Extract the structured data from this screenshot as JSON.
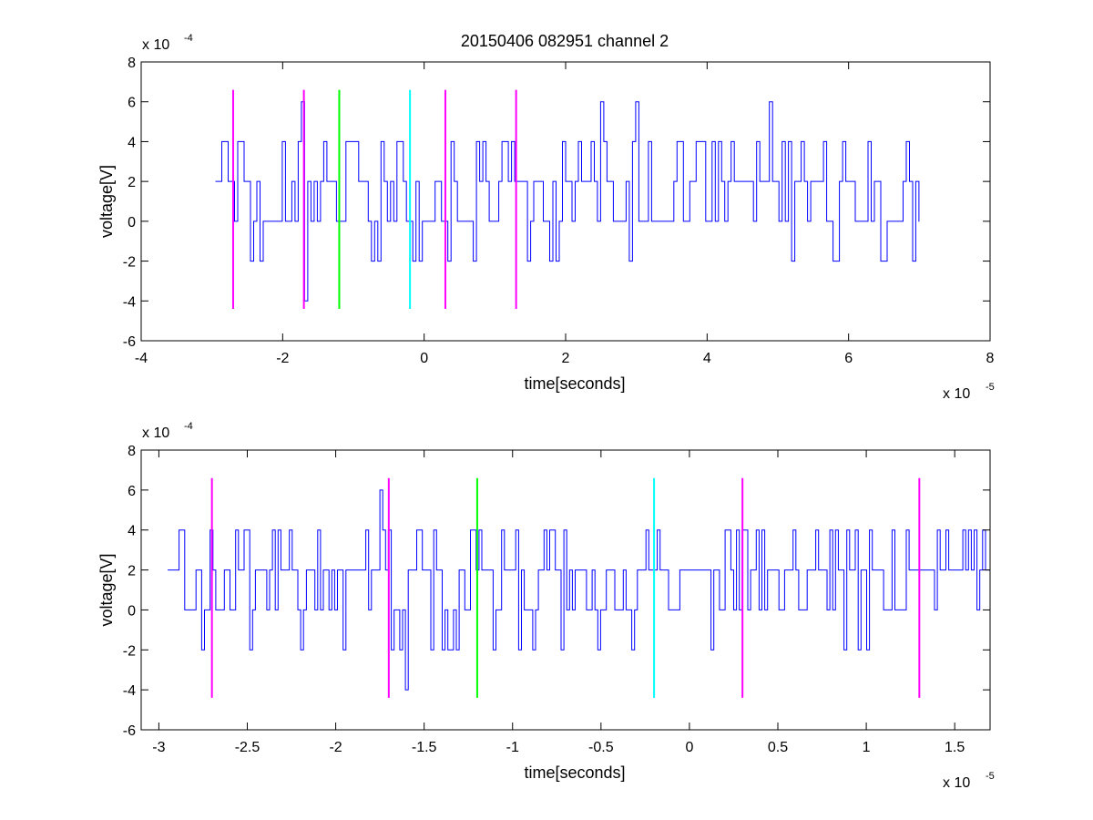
{
  "title": "20150406 082951 channel 2",
  "colors": {
    "signal": "#0000ff",
    "magenta": "#ff00ff",
    "green": "#00ff00",
    "cyan": "#00ffff",
    "axis": "#000000",
    "background": "#ffffff"
  },
  "chart_data": [
    {
      "type": "line",
      "title": "20150406 082951 channel 2",
      "xlabel": "time[seconds]",
      "ylabel": "voltage[V]",
      "x_multiplier_label": "x 10",
      "x_multiplier_exponent": "-5",
      "y_multiplier_label": "x 10",
      "y_multiplier_exponent": "-4",
      "xlim": [
        -4,
        8
      ],
      "ylim": [
        -6,
        8
      ],
      "x_ticks": [
        -4,
        -2,
        0,
        2,
        4,
        6,
        8
      ],
      "x_tick_labels": [
        "-4",
        "-2",
        "0",
        "2",
        "4",
        "6",
        "8"
      ],
      "y_ticks": [
        -6,
        -4,
        -2,
        0,
        2,
        4,
        6,
        8
      ],
      "y_tick_labels": [
        "-6",
        "-4",
        "-2",
        "0",
        "2",
        "4",
        "6",
        "8"
      ],
      "grid": false,
      "series": [
        {
          "kind": "signal",
          "color": "#0000ff",
          "x_range": [
            -2.95,
            7.0
          ],
          "baseline": 2,
          "levels": [
            -4,
            -2,
            0,
            2,
            4,
            6
          ],
          "description_of_samples": "quantized noisy trace in steps of 2e-4 V, mostly 0 to 4",
          "spikes": [
            {
              "x": -1.75,
              "y": 6
            },
            {
              "x": -1.68,
              "y": -4
            },
            {
              "x": 2.5,
              "y": 6
            },
            {
              "x": 3.0,
              "y": 6
            },
            {
              "x": 4.9,
              "y": 6
            }
          ]
        }
      ],
      "markers": [
        {
          "x": -2.7,
          "y_from": -4.4,
          "y_to": 6.6,
          "color": "#ff00ff"
        },
        {
          "x": -1.7,
          "y_from": -4.4,
          "y_to": 6.6,
          "color": "#ff00ff"
        },
        {
          "x": -1.2,
          "y_from": -4.4,
          "y_to": 6.6,
          "color": "#00ff00"
        },
        {
          "x": -0.2,
          "y_from": -4.4,
          "y_to": 6.6,
          "color": "#00ffff"
        },
        {
          "x": 0.3,
          "y_from": -4.4,
          "y_to": 6.6,
          "color": "#ff00ff"
        },
        {
          "x": 1.3,
          "y_from": -4.4,
          "y_to": 6.6,
          "color": "#ff00ff"
        }
      ]
    },
    {
      "type": "line",
      "xlabel": "time[seconds]",
      "ylabel": "voltage[V]",
      "x_multiplier_label": "x 10",
      "x_multiplier_exponent": "-5",
      "y_multiplier_label": "x 10",
      "y_multiplier_exponent": "-4",
      "xlim": [
        -3.1,
        1.7
      ],
      "ylim": [
        -6,
        8
      ],
      "x_ticks": [
        -3,
        -2.5,
        -2,
        -1.5,
        -1,
        -0.5,
        0,
        0.5,
        1,
        1.5
      ],
      "x_tick_labels": [
        "-3",
        "-2.5",
        "-2",
        "-1.5",
        "-1",
        "-0.5",
        "0",
        "0.5",
        "1",
        "1.5"
      ],
      "y_ticks": [
        -6,
        -4,
        -2,
        0,
        2,
        4,
        6,
        8
      ],
      "y_tick_labels": [
        "-6",
        "-4",
        "-2",
        "0",
        "2",
        "4",
        "6",
        "8"
      ],
      "grid": false,
      "series": [
        {
          "kind": "signal",
          "color": "#0000ff",
          "x_range": [
            -2.95,
            1.7
          ],
          "baseline": 2,
          "levels": [
            -4,
            -2,
            0,
            2,
            4,
            6
          ],
          "description_of_samples": "zoomed view of the same quantized trace",
          "spikes": [
            {
              "x": -1.75,
              "y": 6
            },
            {
              "x": -1.6,
              "y": -4
            }
          ]
        }
      ],
      "markers": [
        {
          "x": -2.7,
          "y_from": -4.4,
          "y_to": 6.6,
          "color": "#ff00ff"
        },
        {
          "x": -1.7,
          "y_from": -4.4,
          "y_to": 6.6,
          "color": "#ff00ff"
        },
        {
          "x": -1.2,
          "y_from": -4.4,
          "y_to": 6.6,
          "color": "#00ff00"
        },
        {
          "x": -0.2,
          "y_from": -4.4,
          "y_to": 6.6,
          "color": "#00ffff"
        },
        {
          "x": 0.3,
          "y_from": -4.4,
          "y_to": 6.6,
          "color": "#ff00ff"
        },
        {
          "x": 1.3,
          "y_from": -4.4,
          "y_to": 6.6,
          "color": "#ff00ff"
        }
      ]
    }
  ]
}
